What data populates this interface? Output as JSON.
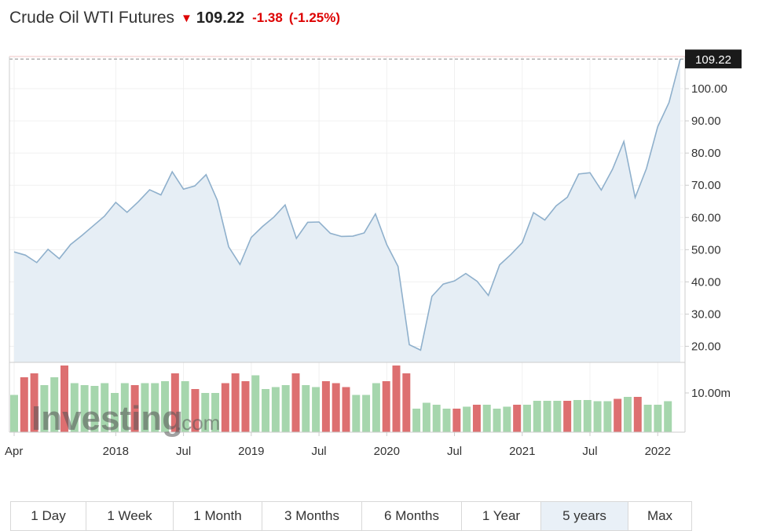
{
  "header": {
    "title": "Crude Oil WTI Futures",
    "arrow": "▼",
    "price": "109.22",
    "change": "-1.38",
    "change_pct": "(-1.25%)"
  },
  "colors": {
    "line": "#8fb0cc",
    "area": "#e6eef5",
    "up_bar": "#a6d6ad",
    "down_bar": "#dd6f70",
    "down": "#dd0000"
  },
  "watermark": {
    "brand": "Investing",
    "suffix": ".com"
  },
  "tabs": [
    {
      "label": "1 Day",
      "active": false
    },
    {
      "label": "1 Week",
      "active": false
    },
    {
      "label": "1 Month",
      "active": false
    },
    {
      "label": "3 Months",
      "active": false
    },
    {
      "label": "6 Months",
      "active": false
    },
    {
      "label": "1 Year",
      "active": false
    },
    {
      "label": "5 years",
      "active": true
    },
    {
      "label": "Max",
      "active": false
    }
  ],
  "chart_data": {
    "type": "area",
    "price_axis": {
      "ylim": [
        15,
        110
      ],
      "ticks": [
        "20.00",
        "30.00",
        "40.00",
        "50.00",
        "60.00",
        "70.00",
        "80.00",
        "90.00",
        "100.00"
      ],
      "last_value_label": "109.22",
      "last_value": 109.22
    },
    "x_axis": {
      "ticks": [
        {
          "label": "Apr",
          "date": "2017-04"
        },
        {
          "label": "2018",
          "date": "2018-01"
        },
        {
          "label": "Jul",
          "date": "2018-07"
        },
        {
          "label": "2019",
          "date": "2019-01"
        },
        {
          "label": "Jul",
          "date": "2019-07"
        },
        {
          "label": "2020",
          "date": "2020-01"
        },
        {
          "label": "Jul",
          "date": "2020-07"
        },
        {
          "label": "2021",
          "date": "2021-01"
        },
        {
          "label": "Jul",
          "date": "2021-07"
        },
        {
          "label": "2022",
          "date": "2022-01"
        }
      ]
    },
    "series": [
      {
        "type": "line",
        "x": [
          "2017-04",
          "2017-05",
          "2017-06",
          "2017-07",
          "2017-08",
          "2017-09",
          "2017-10",
          "2017-11",
          "2017-12",
          "2018-01",
          "2018-02",
          "2018-03",
          "2018-04",
          "2018-05",
          "2018-06",
          "2018-07",
          "2018-08",
          "2018-09",
          "2018-10",
          "2018-11",
          "2018-12",
          "2019-01",
          "2019-02",
          "2019-03",
          "2019-04",
          "2019-05",
          "2019-06",
          "2019-07",
          "2019-08",
          "2019-09",
          "2019-10",
          "2019-11",
          "2019-12",
          "2020-01",
          "2020-02",
          "2020-03",
          "2020-04",
          "2020-05",
          "2020-06",
          "2020-07",
          "2020-08",
          "2020-09",
          "2020-10",
          "2020-11",
          "2020-12",
          "2021-01",
          "2021-02",
          "2021-03",
          "2021-04",
          "2021-05",
          "2021-06",
          "2021-07",
          "2021-08",
          "2021-09",
          "2021-10",
          "2021-11",
          "2021-12",
          "2022-01",
          "2022-02",
          "2022-03"
        ],
        "values": [
          49.3,
          48.3,
          46.0,
          50.1,
          47.2,
          51.6,
          54.4,
          57.4,
          60.4,
          64.7,
          61.6,
          64.9,
          68.6,
          67.0,
          74.2,
          68.8,
          69.8,
          73.3,
          65.3,
          50.9,
          45.4,
          53.8,
          57.2,
          60.1,
          63.9,
          53.5,
          58.5,
          58.6,
          55.1,
          54.1,
          54.2,
          55.2,
          61.1,
          51.6,
          44.8,
          20.5,
          18.8,
          35.5,
          39.3,
          40.3,
          42.6,
          40.2,
          35.8,
          45.3,
          48.5,
          52.2,
          61.5,
          59.2,
          63.6,
          66.3,
          73.5,
          73.9,
          68.5,
          75.0,
          83.6,
          66.2,
          75.2,
          88.2,
          95.7,
          109.2
        ]
      },
      {
        "type": "bar",
        "name": "",
        "axis_tick": "10.00m",
        "ylim": [
          0,
          17
        ],
        "values": [
          9.5,
          14,
          15,
          12,
          14,
          17,
          12.5,
          12,
          11.8,
          12.5,
          10,
          12.5,
          12,
          12.5,
          12.5,
          13,
          15,
          13,
          11,
          10,
          10,
          12.5,
          15,
          13,
          14.5,
          11,
          11.5,
          12,
          15,
          12,
          11.5,
          13,
          12.5,
          11.5,
          9.5,
          9.5,
          12.5,
          13,
          17,
          15,
          6,
          7.5,
          7,
          6,
          6,
          6.5,
          7,
          7,
          6,
          6.5,
          7,
          7,
          8,
          8,
          8,
          8,
          8.2,
          8.2,
          7.9,
          7.9,
          8.5,
          9,
          9,
          7,
          7,
          7.9
        ],
        "direction": [
          "up",
          "down",
          "down",
          "up",
          "up",
          "down",
          "up",
          "up",
          "up",
          "up",
          "up",
          "up",
          "down",
          "up",
          "up",
          "up",
          "down",
          "up",
          "down",
          "up",
          "up",
          "down",
          "down",
          "down",
          "up",
          "up",
          "up",
          "up",
          "down",
          "up",
          "up",
          "down",
          "down",
          "down",
          "up",
          "up",
          "up",
          "down",
          "down",
          "down",
          "up",
          "up",
          "up",
          "up",
          "down",
          "up",
          "down",
          "up",
          "up",
          "up",
          "down",
          "up",
          "up",
          "up",
          "up",
          "down",
          "up",
          "up",
          "up",
          "up",
          "down",
          "up",
          "down",
          "up",
          "up",
          "up"
        ]
      }
    ]
  }
}
